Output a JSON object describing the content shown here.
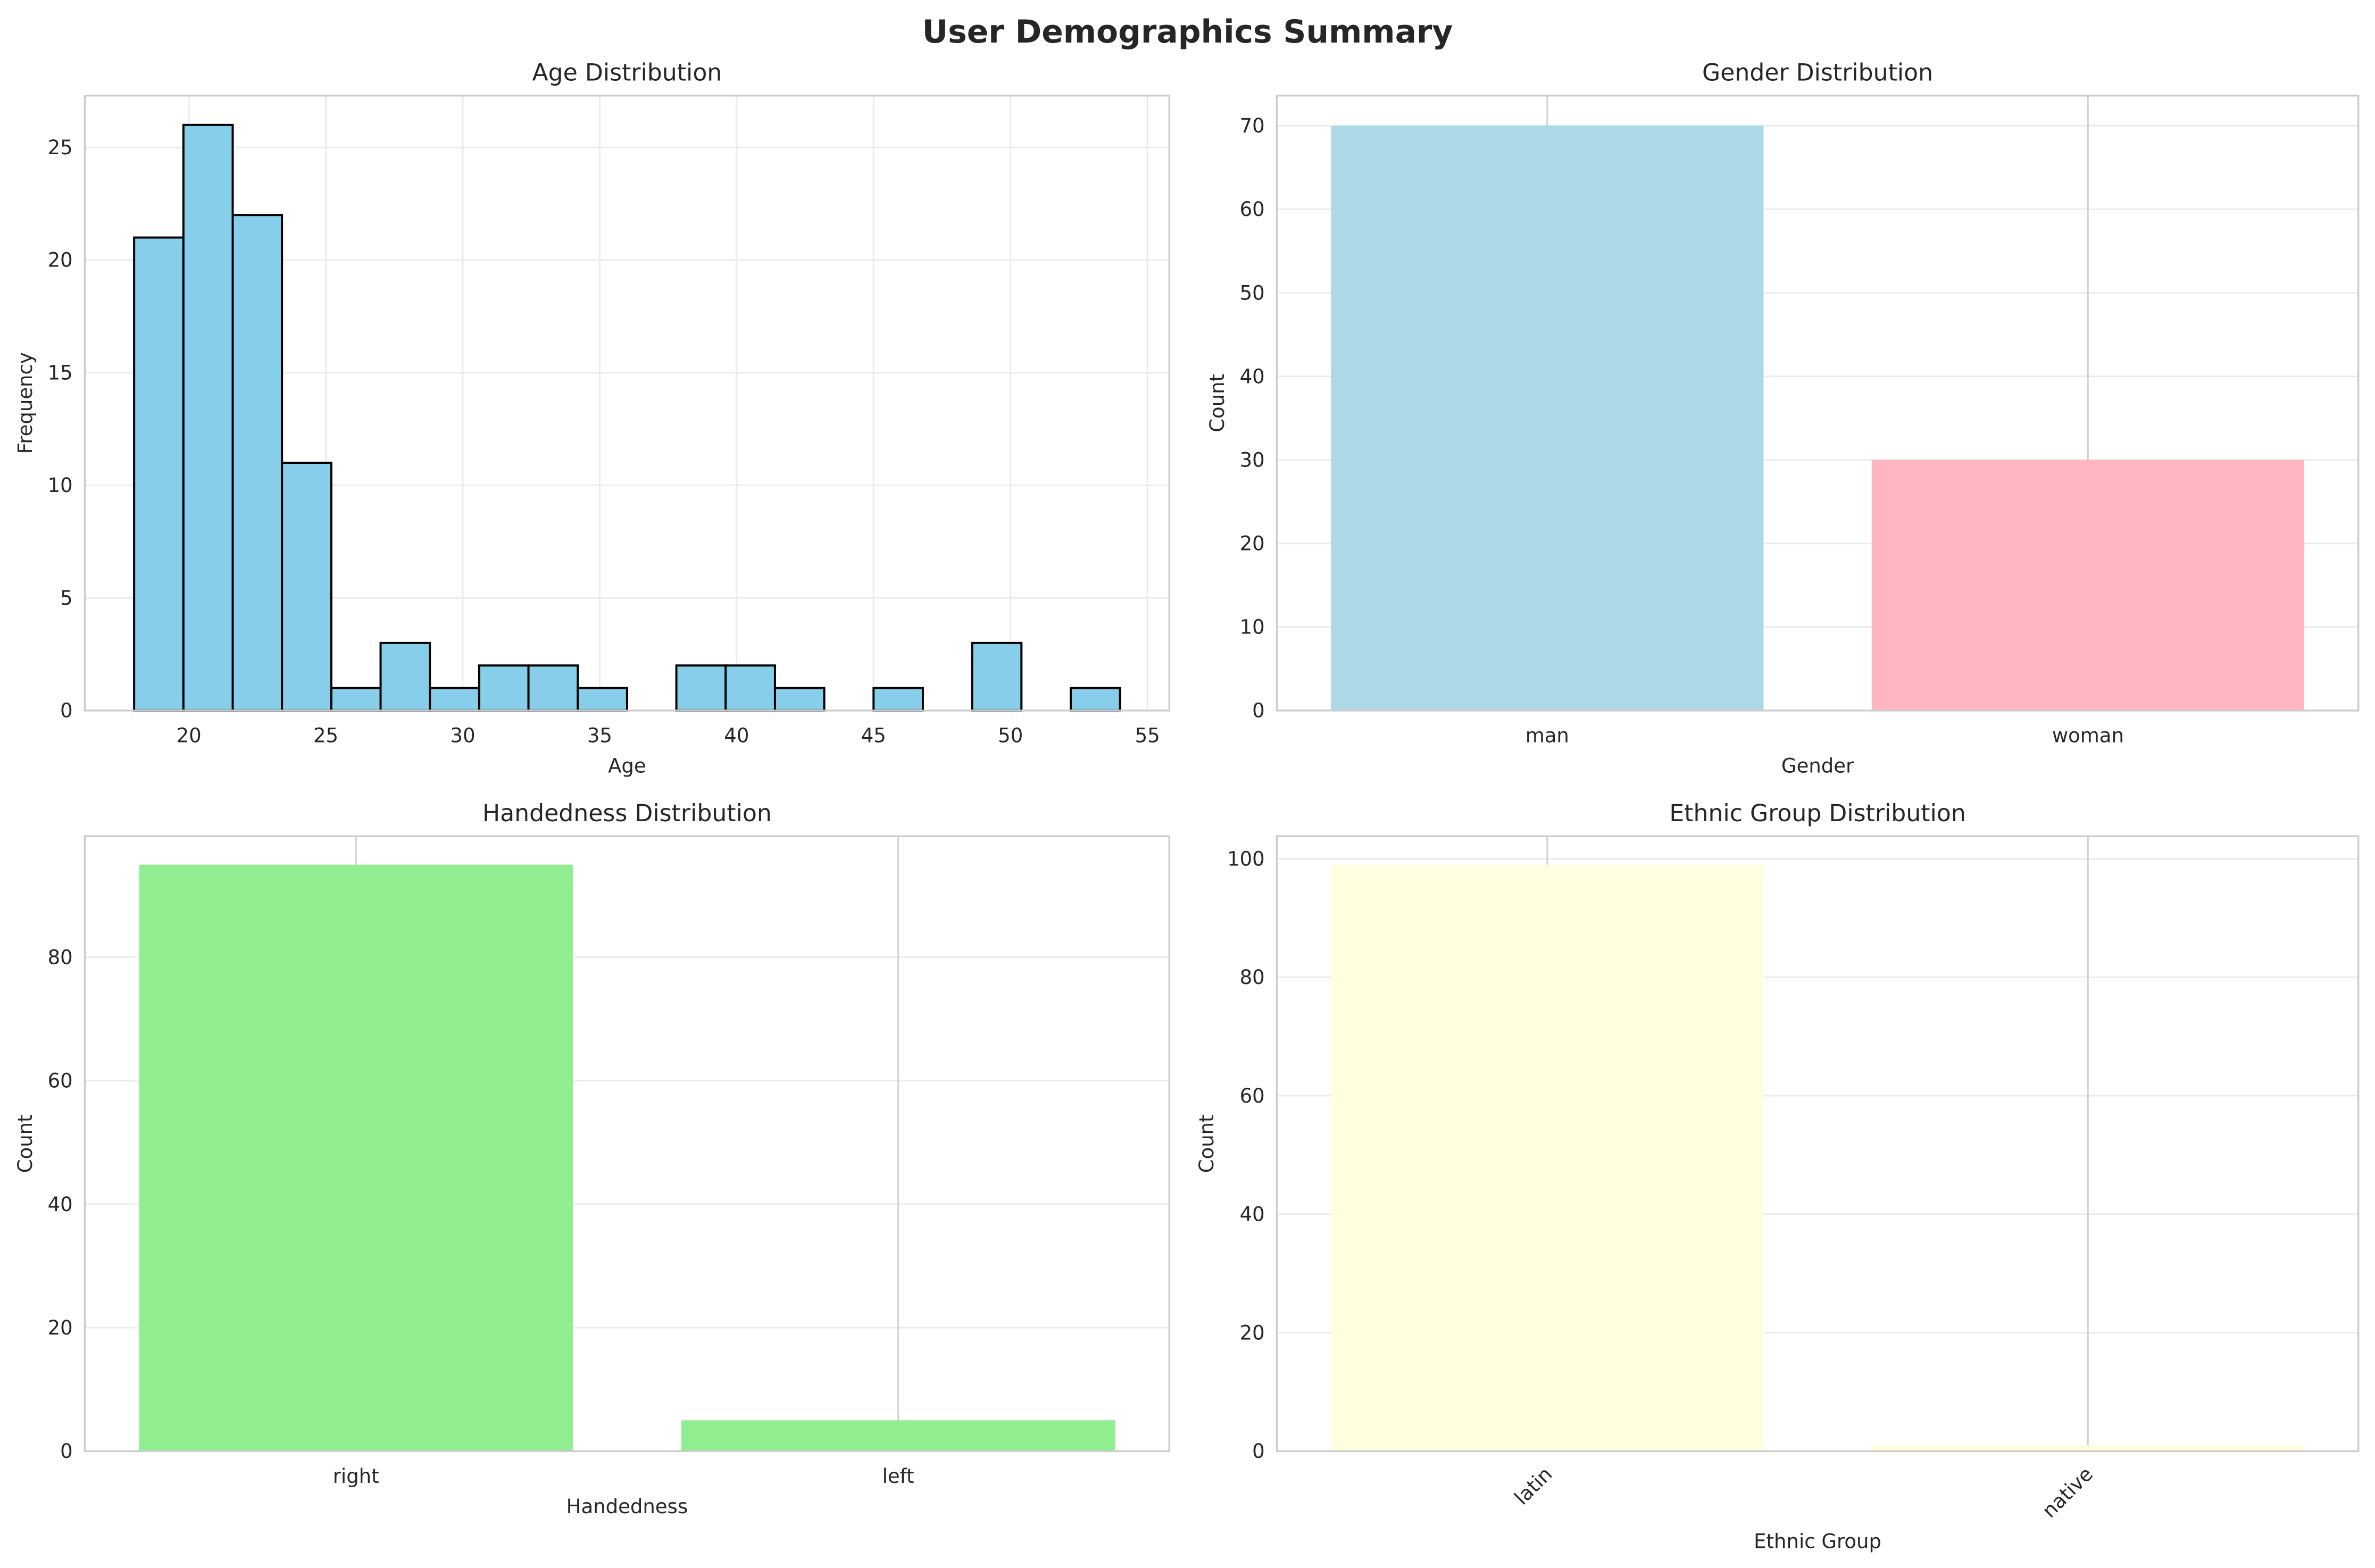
{
  "title": "User Demographics Summary",
  "chart_data": [
    {
      "type": "histogram",
      "title": "Age Distribution",
      "xlabel": "Age",
      "ylabel": "Frequency",
      "bins": [
        18,
        19.8,
        21.6,
        23.4,
        25.2,
        27,
        28.8,
        30.6,
        32.4,
        34.2,
        36,
        37.8,
        39.6,
        41.4,
        43.2,
        45,
        46.8,
        48.6,
        50.4,
        52.2,
        54
      ],
      "values": [
        21,
        26,
        22,
        11,
        1,
        3,
        1,
        2,
        2,
        1,
        0,
        2,
        2,
        1,
        0,
        1,
        0,
        3,
        0,
        1
      ],
      "color": "#87ceeb",
      "edgecolor": "#000000",
      "xlim": [
        16.2,
        55.8
      ],
      "xticks": [
        20,
        25,
        30,
        35,
        40,
        45,
        50,
        55
      ],
      "ylim": [
        0,
        27.3
      ],
      "yticks": [
        0,
        5,
        10,
        15,
        20,
        25
      ],
      "grid": true
    },
    {
      "type": "bar",
      "title": "Gender Distribution",
      "xlabel": "Gender",
      "ylabel": "Count",
      "categories": [
        "man",
        "woman"
      ],
      "values": [
        70,
        30
      ],
      "colors": [
        "#add8e6",
        "#ffb6c1"
      ],
      "ylim": [
        0,
        73.6
      ],
      "yticks": [
        0,
        10,
        20,
        30,
        40,
        50,
        60,
        70
      ],
      "grid": true
    },
    {
      "type": "bar",
      "title": "Handedness Distribution",
      "xlabel": "Handedness",
      "ylabel": "Count",
      "categories": [
        "right",
        "left"
      ],
      "values": [
        95,
        5
      ],
      "colors": [
        "#90ee90",
        "#90ee90"
      ],
      "ylim": [
        0,
        99.6
      ],
      "yticks": [
        0,
        20,
        40,
        60,
        80
      ],
      "grid": true
    },
    {
      "type": "bar",
      "title": "Ethnic Group Distribution",
      "xlabel": "Ethnic Group",
      "ylabel": "Count",
      "categories": [
        "latin",
        "native"
      ],
      "values": [
        99,
        1
      ],
      "colors": [
        "#ffffe0",
        "#ffffe0"
      ],
      "ylim": [
        0,
        103.8
      ],
      "yticks": [
        0,
        20,
        40,
        60,
        80,
        100
      ],
      "grid": true,
      "xtick_rotation": 45
    }
  ]
}
